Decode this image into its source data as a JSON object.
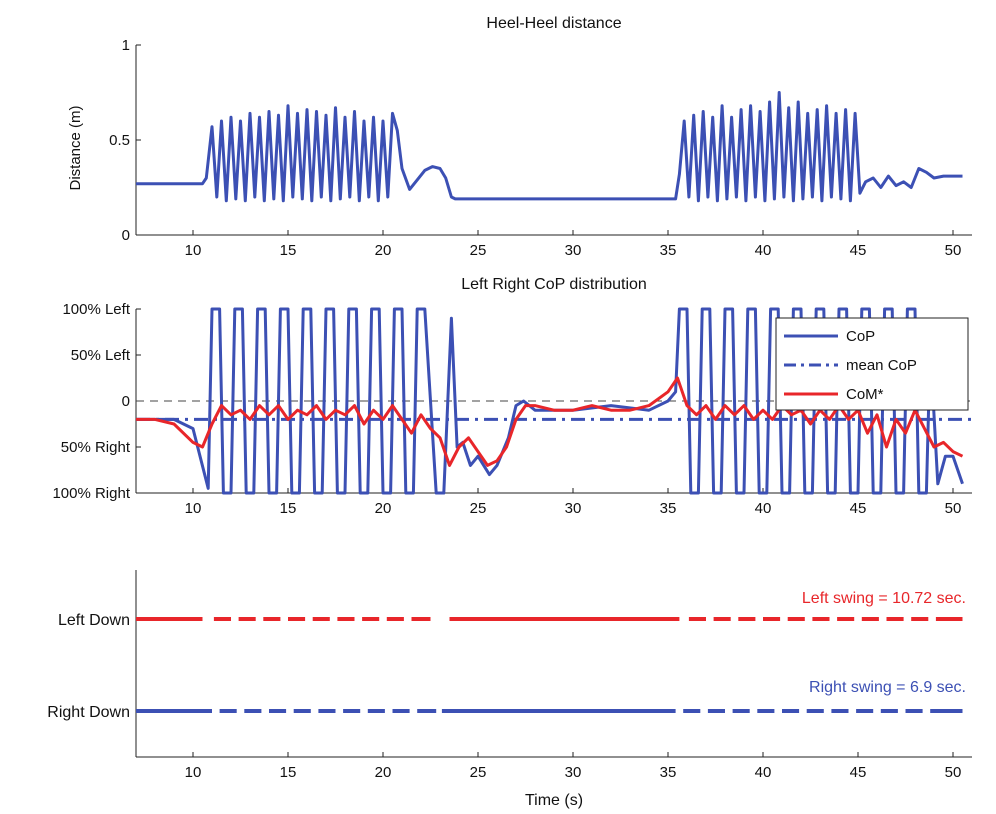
{
  "chart_data": [
    {
      "type": "line",
      "title": "Heel-Heel distance",
      "xlabel": "",
      "ylabel": "Distance (m)",
      "xlim": [
        7,
        51
      ],
      "ylim": [
        0,
        1
      ],
      "xticks": [
        10,
        15,
        20,
        25,
        30,
        35,
        40,
        45,
        50
      ],
      "yticks": [
        0,
        0.5,
        1
      ],
      "ytick_labels": [
        "0",
        "0.5",
        "1"
      ],
      "grid": false,
      "colors": {
        "line": "#3c50b4"
      },
      "series": [
        {
          "x": [
            7.0,
            10.5,
            10.7,
            11.0,
            11.25,
            11.5,
            11.75,
            12.0,
            12.25,
            12.5,
            12.75,
            13.0,
            13.25,
            13.5,
            13.75,
            14.0,
            14.25,
            14.5,
            14.75,
            15.0,
            15.25,
            15.5,
            15.75,
            16.0,
            16.25,
            16.5,
            16.75,
            17.0,
            17.25,
            17.5,
            17.75,
            18.0,
            18.25,
            18.5,
            18.75,
            19.0,
            19.25,
            19.5,
            19.75,
            20.0,
            20.25,
            20.5,
            20.75,
            21.0,
            21.4,
            21.8,
            22.2,
            22.6,
            23.0,
            23.3,
            23.6,
            23.8,
            24.2,
            26.0,
            30.0,
            35.4,
            35.6,
            35.85,
            36.1,
            36.35,
            36.6,
            36.85,
            37.1,
            37.35,
            37.6,
            37.85,
            38.1,
            38.35,
            38.6,
            38.85,
            39.1,
            39.35,
            39.6,
            39.85,
            40.1,
            40.35,
            40.6,
            40.85,
            41.1,
            41.35,
            41.6,
            41.85,
            42.1,
            42.35,
            42.6,
            42.85,
            43.1,
            43.35,
            43.6,
            43.85,
            44.1,
            44.35,
            44.6,
            44.85,
            45.1,
            45.4,
            45.8,
            46.2,
            46.6,
            47.0,
            47.4,
            47.8,
            48.2,
            48.6,
            49.0,
            49.5,
            50.5
          ],
          "y": [
            0.27,
            0.27,
            0.3,
            0.57,
            0.2,
            0.6,
            0.18,
            0.62,
            0.19,
            0.6,
            0.18,
            0.64,
            0.2,
            0.62,
            0.18,
            0.65,
            0.19,
            0.63,
            0.18,
            0.68,
            0.2,
            0.64,
            0.19,
            0.66,
            0.18,
            0.65,
            0.2,
            0.63,
            0.18,
            0.67,
            0.19,
            0.62,
            0.2,
            0.65,
            0.18,
            0.6,
            0.2,
            0.62,
            0.18,
            0.6,
            0.2,
            0.64,
            0.55,
            0.35,
            0.24,
            0.29,
            0.34,
            0.36,
            0.35,
            0.3,
            0.2,
            0.19,
            0.19,
            0.19,
            0.19,
            0.19,
            0.32,
            0.6,
            0.2,
            0.63,
            0.18,
            0.65,
            0.2,
            0.62,
            0.18,
            0.68,
            0.19,
            0.62,
            0.2,
            0.66,
            0.18,
            0.68,
            0.2,
            0.65,
            0.18,
            0.7,
            0.19,
            0.75,
            0.2,
            0.67,
            0.18,
            0.7,
            0.19,
            0.64,
            0.2,
            0.66,
            0.18,
            0.68,
            0.2,
            0.64,
            0.19,
            0.66,
            0.18,
            0.64,
            0.22,
            0.28,
            0.3,
            0.25,
            0.31,
            0.26,
            0.28,
            0.25,
            0.35,
            0.33,
            0.3,
            0.31,
            0.31
          ]
        }
      ]
    },
    {
      "type": "line",
      "title": "Left Right CoP distribution",
      "xlabel": "",
      "ylabel": "",
      "xlim": [
        7,
        51
      ],
      "ylim": [
        -1,
        1
      ],
      "xticks": [
        10,
        15,
        20,
        25,
        30,
        35,
        40,
        45,
        50
      ],
      "yticks": [
        1,
        0.5,
        0,
        -0.5,
        -1
      ],
      "ytick_labels": [
        "100% Left",
        "50% Left",
        "0",
        "50% Right",
        "100% Right"
      ],
      "grid": false,
      "legend": {
        "placement": "top-right",
        "entries": [
          "CoP",
          "mean CoP",
          "CoM*"
        ]
      },
      "series": [
        {
          "name": "CoP",
          "color": "#3c50b4",
          "style": "solid",
          "x": [
            7.0,
            9.0,
            10.0,
            10.8,
            11.0,
            11.4,
            11.6,
            12.0,
            12.2,
            12.6,
            12.8,
            13.2,
            13.4,
            13.8,
            14.0,
            14.4,
            14.6,
            15.0,
            15.2,
            15.6,
            15.8,
            16.2,
            16.4,
            16.8,
            17.0,
            17.4,
            17.6,
            18.0,
            18.2,
            18.6,
            18.8,
            19.2,
            19.4,
            19.8,
            20.0,
            20.4,
            20.6,
            21.0,
            21.2,
            21.6,
            21.8,
            22.2,
            22.8,
            23.2,
            23.6,
            23.9,
            24.2,
            24.6,
            25.0,
            25.6,
            26.0,
            26.6,
            27.0,
            27.4,
            28.0,
            30.0,
            32.0,
            34.0,
            35.0,
            35.4,
            35.6,
            36.0,
            36.2,
            36.6,
            36.8,
            37.2,
            37.4,
            37.8,
            38.0,
            38.4,
            38.6,
            39.0,
            39.2,
            39.6,
            39.8,
            40.2,
            40.4,
            40.8,
            41.0,
            41.4,
            41.6,
            42.0,
            42.2,
            42.6,
            42.8,
            43.2,
            43.4,
            43.8,
            44.0,
            44.4,
            44.6,
            45.0,
            45.2,
            45.6,
            45.8,
            46.2,
            46.4,
            46.8,
            47.0,
            47.4,
            47.6,
            48.0,
            48.2,
            48.6,
            48.8,
            49.2,
            49.6,
            50.0,
            50.5
          ],
          "y": [
            -0.2,
            -0.2,
            -0.3,
            -0.95,
            1.0,
            1.0,
            -1.0,
            -1.0,
            1.0,
            1.0,
            -1.0,
            -1.0,
            1.0,
            1.0,
            -1.0,
            -1.0,
            1.0,
            1.0,
            -1.0,
            -1.0,
            1.0,
            1.0,
            -1.0,
            -1.0,
            1.0,
            1.0,
            -1.0,
            -1.0,
            1.0,
            1.0,
            -1.0,
            -1.0,
            1.0,
            1.0,
            -1.0,
            -1.0,
            1.0,
            1.0,
            -1.0,
            -1.0,
            1.0,
            1.0,
            -1.0,
            -1.0,
            0.9,
            -0.5,
            -0.45,
            -0.7,
            -0.6,
            -0.8,
            -0.7,
            -0.4,
            -0.05,
            0.0,
            -0.1,
            -0.1,
            -0.05,
            -0.1,
            0.0,
            0.1,
            1.0,
            1.0,
            -1.0,
            -1.0,
            1.0,
            1.0,
            -1.0,
            -1.0,
            1.0,
            1.0,
            -1.0,
            -1.0,
            1.0,
            1.0,
            -1.0,
            -1.0,
            1.0,
            1.0,
            -1.0,
            -1.0,
            1.0,
            1.0,
            -1.0,
            -1.0,
            1.0,
            1.0,
            -1.0,
            -1.0,
            1.0,
            1.0,
            -1.0,
            -1.0,
            1.0,
            1.0,
            -1.0,
            -1.0,
            1.0,
            1.0,
            -1.0,
            -1.0,
            1.0,
            1.0,
            -1.0,
            -1.0,
            0.6,
            -0.9,
            -0.6,
            -0.6,
            -0.9
          ]
        },
        {
          "name": "mean CoP",
          "color": "#3c50b4",
          "style": "dashdot",
          "x": [
            7.0,
            51.0
          ],
          "y": [
            -0.2,
            -0.2
          ]
        },
        {
          "name": "CoM*",
          "color": "#e8262a",
          "style": "solid",
          "x": [
            7.0,
            8.0,
            9.0,
            10.0,
            10.5,
            11.0,
            11.5,
            12.0,
            12.5,
            13.0,
            13.5,
            14.0,
            14.5,
            15.0,
            15.5,
            16.0,
            16.5,
            17.0,
            17.5,
            18.0,
            18.5,
            19.0,
            19.5,
            20.0,
            20.5,
            21.0,
            21.5,
            22.0,
            22.5,
            23.0,
            23.5,
            24.0,
            24.5,
            25.0,
            25.5,
            26.0,
            26.5,
            27.0,
            27.5,
            28.0,
            29.0,
            30.0,
            31.0,
            32.0,
            33.0,
            34.0,
            35.0,
            35.5,
            36.0,
            36.5,
            37.0,
            37.5,
            38.0,
            38.5,
            39.0,
            39.5,
            40.0,
            40.5,
            41.0,
            41.5,
            42.0,
            42.5,
            43.0,
            43.5,
            44.0,
            44.5,
            45.0,
            45.5,
            46.0,
            46.5,
            47.0,
            47.5,
            48.0,
            48.5,
            49.0,
            49.5,
            50.0,
            50.5
          ],
          "y": [
            -0.2,
            -0.2,
            -0.25,
            -0.45,
            -0.5,
            -0.25,
            -0.05,
            -0.15,
            -0.1,
            -0.2,
            -0.05,
            -0.15,
            -0.05,
            -0.2,
            -0.1,
            -0.15,
            -0.05,
            -0.2,
            -0.1,
            -0.15,
            -0.05,
            -0.25,
            -0.1,
            -0.2,
            -0.05,
            -0.2,
            -0.35,
            -0.15,
            -0.3,
            -0.4,
            -0.7,
            -0.5,
            -0.4,
            -0.55,
            -0.7,
            -0.65,
            -0.5,
            -0.2,
            -0.05,
            -0.05,
            -0.1,
            -0.1,
            -0.05,
            -0.1,
            -0.1,
            -0.05,
            0.1,
            0.25,
            -0.05,
            -0.15,
            -0.05,
            -0.2,
            -0.05,
            -0.15,
            -0.05,
            -0.2,
            -0.1,
            -0.2,
            -0.05,
            -0.15,
            -0.1,
            -0.25,
            -0.1,
            -0.2,
            -0.05,
            -0.2,
            -0.1,
            -0.35,
            -0.15,
            -0.5,
            -0.2,
            -0.35,
            -0.1,
            -0.3,
            -0.5,
            -0.45,
            -0.55,
            -0.6
          ]
        }
      ]
    },
    {
      "type": "line",
      "title": "",
      "xlabel": "Time (s)",
      "ylabel": "",
      "xlim": [
        7,
        51
      ],
      "xticks": [
        10,
        15,
        20,
        25,
        30,
        35,
        40,
        45,
        50
      ],
      "ytick_labels": [
        "Left Down",
        "Right Down"
      ],
      "grid": false,
      "annotations": [
        "Left swing = 10.72 sec.",
        "Right swing = 6.9 sec."
      ],
      "series": [
        {
          "row": "Left Down",
          "color": "#e8262a",
          "segments": [
            [
              7.0,
              10.5
            ],
            [
              11.1,
              12.0
            ],
            [
              12.4,
              13.3
            ],
            [
              13.7,
              14.6
            ],
            [
              15.0,
              15.9
            ],
            [
              16.3,
              17.2
            ],
            [
              17.6,
              18.5
            ],
            [
              18.9,
              19.8
            ],
            [
              20.2,
              21.1
            ],
            [
              21.5,
              22.5
            ],
            [
              23.5,
              35.6
            ],
            [
              36.1,
              37.0
            ],
            [
              37.4,
              38.3
            ],
            [
              38.7,
              39.6
            ],
            [
              40.0,
              40.9
            ],
            [
              41.3,
              42.2
            ],
            [
              42.6,
              43.5
            ],
            [
              43.9,
              44.8
            ],
            [
              45.2,
              46.1
            ],
            [
              46.5,
              47.4
            ],
            [
              47.8,
              48.7
            ],
            [
              49.1,
              50.5
            ]
          ]
        },
        {
          "row": "Right Down",
          "color": "#3c50b4",
          "segments": [
            [
              7.0,
              11.0
            ],
            [
              11.4,
              12.3
            ],
            [
              12.7,
              13.6
            ],
            [
              14.0,
              14.9
            ],
            [
              15.3,
              16.2
            ],
            [
              16.6,
              17.5
            ],
            [
              17.9,
              18.8
            ],
            [
              19.2,
              20.1
            ],
            [
              20.5,
              21.4
            ],
            [
              21.8,
              22.8
            ],
            [
              23.1,
              35.4
            ],
            [
              35.8,
              36.7
            ],
            [
              37.1,
              38.0
            ],
            [
              38.4,
              39.3
            ],
            [
              39.7,
              40.6
            ],
            [
              41.0,
              41.9
            ],
            [
              42.3,
              43.2
            ],
            [
              43.6,
              44.5
            ],
            [
              44.9,
              45.8
            ],
            [
              46.2,
              47.1
            ],
            [
              47.5,
              48.4
            ],
            [
              48.8,
              50.5
            ]
          ]
        }
      ]
    }
  ]
}
